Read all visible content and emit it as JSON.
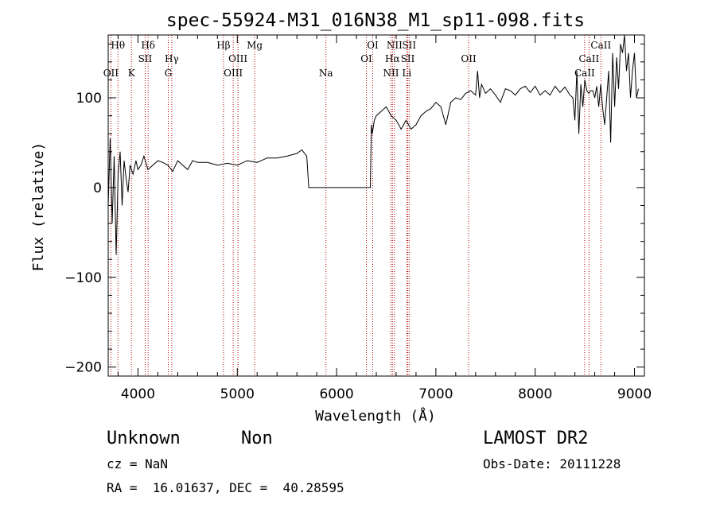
{
  "chart_data": {
    "type": "line",
    "title": "spec-55924-M31_016N38_M1_sp11-098.fits",
    "xlabel": "Wavelength (Å)",
    "ylabel": "Flux (relative)",
    "xlim": [
      3700,
      9100
    ],
    "ylim": [
      -210,
      170
    ],
    "xticks": [
      4000,
      5000,
      6000,
      7000,
      8000,
      9000
    ],
    "yticks": [
      -200,
      -100,
      0,
      100
    ],
    "ytick_labels": [
      "−200",
      "−100",
      "0",
      "100"
    ],
    "grid": false,
    "series": [
      {
        "color": "#000000",
        "x": [
          3700,
          3720,
          3740,
          3760,
          3780,
          3800,
          3820,
          3840,
          3860,
          3880,
          3900,
          3920,
          3950,
          3980,
          4000,
          4030,
          4060,
          4100,
          4150,
          4200,
          4250,
          4300,
          4350,
          4400,
          4450,
          4500,
          4550,
          4600,
          4700,
          4800,
          4900,
          5000,
          5100,
          5200,
          5300,
          5400,
          5500,
          5600,
          5650,
          5700,
          5720,
          5730,
          6000,
          6300,
          6340,
          6350,
          6360,
          6380,
          6400,
          6450,
          6500,
          6550,
          6600,
          6650,
          6700,
          6750,
          6800,
          6850,
          6900,
          6950,
          7000,
          7050,
          7100,
          7150,
          7200,
          7250,
          7300,
          7350,
          7400,
          7420,
          7440,
          7460,
          7500,
          7550,
          7600,
          7650,
          7700,
          7750,
          7800,
          7850,
          7900,
          7950,
          8000,
          8050,
          8100,
          8150,
          8200,
          8250,
          8300,
          8350,
          8380,
          8400,
          8420,
          8440,
          8460,
          8480,
          8500,
          8520,
          8540,
          8560,
          8580,
          8600,
          8620,
          8640,
          8660,
          8680,
          8700,
          8720,
          8740,
          8760,
          8780,
          8800,
          8820,
          8840,
          8860,
          8880,
          8900,
          8920,
          8940,
          8960,
          8980,
          9000,
          9020,
          9040
        ],
        "y": [
          -20,
          55,
          -40,
          35,
          -75,
          15,
          40,
          -20,
          30,
          10,
          -5,
          25,
          15,
          30,
          20,
          25,
          35,
          20,
          25,
          30,
          28,
          25,
          18,
          30,
          25,
          20,
          30,
          28,
          28,
          25,
          27,
          25,
          30,
          28,
          33,
          33,
          35,
          38,
          42,
          35,
          0,
          0,
          0,
          0,
          0,
          70,
          60,
          75,
          80,
          85,
          90,
          80,
          75,
          65,
          75,
          65,
          70,
          80,
          85,
          88,
          95,
          90,
          70,
          95,
          100,
          98,
          105,
          108,
          103,
          130,
          100,
          115,
          105,
          110,
          103,
          95,
          110,
          108,
          103,
          110,
          113,
          106,
          113,
          103,
          108,
          103,
          113,
          106,
          112,
          103,
          100,
          75,
          130,
          60,
          115,
          90,
          120,
          108,
          105,
          108,
          108,
          100,
          113,
          90,
          115,
          88,
          70,
          100,
          130,
          50,
          150,
          90,
          145,
          110,
          160,
          150,
          170,
          130,
          150,
          100,
          130,
          150,
          100,
          110
        ]
      }
    ],
    "line_markers": [
      {
        "label": "Hθ",
        "x": 3798,
        "row": 1
      },
      {
        "label": "OII",
        "x": 3727,
        "row": 3
      },
      {
        "label": "K",
        "x": 3934,
        "row": 3
      },
      {
        "label": "Hδ",
        "x": 4102,
        "row": 1
      },
      {
        "label": "SII",
        "x": 4072,
        "row": 2
      },
      {
        "label": "Hγ",
        "x": 4340,
        "row": 2
      },
      {
        "label": "G",
        "x": 4305,
        "row": 3
      },
      {
        "label": "Hβ",
        "x": 4861,
        "row": 1
      },
      {
        "label": "OIII",
        "x": 5007,
        "row": 2
      },
      {
        "label": "OIII",
        "x": 4959,
        "row": 3
      },
      {
        "label": "Mg",
        "x": 5175,
        "row": 1
      },
      {
        "label": "Na",
        "x": 5893,
        "row": 3
      },
      {
        "label": "OI",
        "x": 6364,
        "row": 1
      },
      {
        "label": "OI",
        "x": 6300,
        "row": 2
      },
      {
        "label": "NII",
        "x": 6583,
        "row": 1
      },
      {
        "label": "Hα",
        "x": 6563,
        "row": 2
      },
      {
        "label": "NII",
        "x": 6548,
        "row": 3
      },
      {
        "label": "SII",
        "x": 6731,
        "row": 1
      },
      {
        "label": "SII",
        "x": 6717,
        "row": 2
      },
      {
        "label": "Li",
        "x": 6707,
        "row": 3
      },
      {
        "label": "OII",
        "x": 7330,
        "row": 2
      },
      {
        "label": "CaII",
        "x": 8662,
        "row": 1
      },
      {
        "label": "CaII",
        "x": 8542,
        "row": 2
      },
      {
        "label": "CaII",
        "x": 8498,
        "row": 3
      }
    ]
  },
  "info": {
    "object_class": "Unknown",
    "subclass": "Non",
    "redshift": "cz = NaN",
    "coords": "RA =  16.01637, DEC =  40.28595",
    "survey": "LAMOST DR2",
    "obs_date": "Obs-Date: 20111228"
  }
}
